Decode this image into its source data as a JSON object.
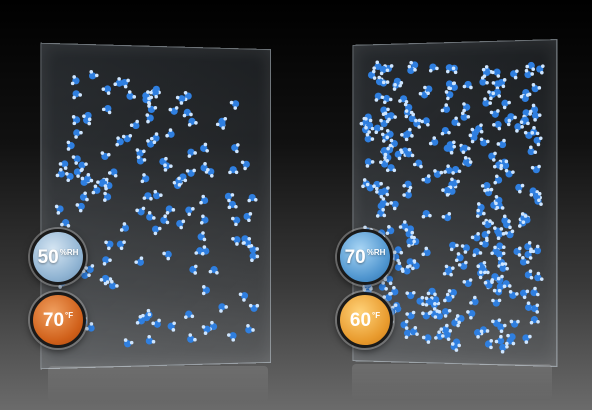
{
  "panels": [
    {
      "humidity": {
        "value": "50",
        "unit": "%RH"
      },
      "temperature": {
        "value": "70",
        "unit": "°F"
      },
      "humidity_color": "#a8c4dd",
      "temperature_color": "#d0601a"
    },
    {
      "humidity": {
        "value": "70",
        "unit": "%RH"
      },
      "temperature": {
        "value": "60",
        "unit": "°F"
      },
      "humidity_color": "#4f95cf",
      "temperature_color": "#e89a2d"
    }
  ],
  "icons": {
    "molecule": "water-molecule-icon"
  }
}
